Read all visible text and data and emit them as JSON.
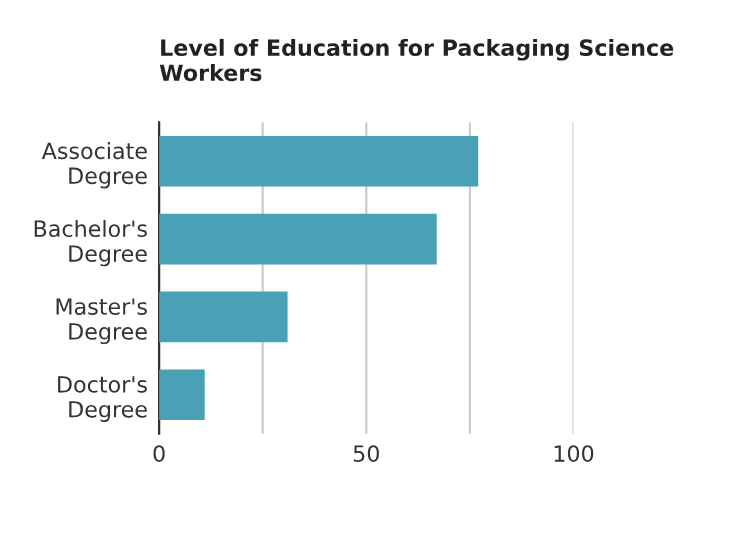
{
  "chart_data": {
    "type": "bar",
    "orientation": "horizontal",
    "title": "Level of Education for Packaging Science Workers",
    "categories": [
      "Associate\nDegree",
      "Bachelor's\nDegree",
      "Master's\nDegree",
      "Doctor's\nDegree"
    ],
    "values": [
      77,
      67,
      31,
      11
    ],
    "color": "#4aa0b4",
    "xlim": [
      0,
      100
    ],
    "xticks": [
      0,
      {
        "value": 25,
        "label": null
      },
      50,
      {
        "value": 75,
        "label": null
      },
      100
    ],
    "grid": "x"
  }
}
